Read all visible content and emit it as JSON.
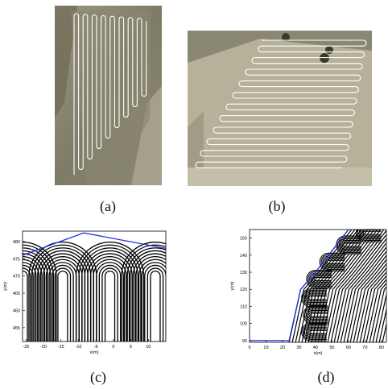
{
  "captions": {
    "a": "(a)",
    "b": "(b)",
    "c": "(c)",
    "d": "(d)"
  },
  "colors": {
    "path_white": "#ffffff",
    "boundary_blue": "#1f2fe0",
    "curve_black": "#000000",
    "field_a": "#8c8a73",
    "field_b": "#b9b39c",
    "soil": "#6f6752"
  },
  "chart_data": [
    {
      "type": "line",
      "title": "",
      "xlabel": "x(m)",
      "ylabel": "y(m)",
      "xlim": [
        -26,
        15
      ],
      "ylim": [
        451,
        483
      ],
      "xticks": [
        "-25",
        "-20",
        "-15",
        "-10",
        "-5",
        "0",
        "5",
        "10"
      ],
      "yticks": [
        "455",
        "460",
        "465",
        "470",
        "475",
        "480"
      ],
      "series": [
        {
          "values": [
            [
              -26,
              476
            ],
            [
              -8.5,
              482.5
            ],
            [
              15,
              478
            ]
          ]
        }
      ],
      "loop_centers_x": [
        -26,
        -14.5,
        -1,
        12
      ]
    },
    {
      "type": "line",
      "title": "",
      "xlabel": "x(m)",
      "ylabel": "y(m)",
      "xlim": [
        0,
        83
      ],
      "ylim": [
        89,
        155
      ],
      "xticks": [
        "0",
        "10",
        "20",
        "30",
        "40",
        "50",
        "60",
        "70",
        "80"
      ],
      "yticks": [
        "90",
        "100",
        "110",
        "120",
        "130",
        "140",
        "150"
      ],
      "series": [
        {
          "values": [
            [
              0,
              90
            ],
            [
              24,
              90
            ],
            [
              31,
              120
            ],
            [
              40,
              130
            ],
            [
              60,
              155
            ]
          ]
        }
      ]
    }
  ]
}
